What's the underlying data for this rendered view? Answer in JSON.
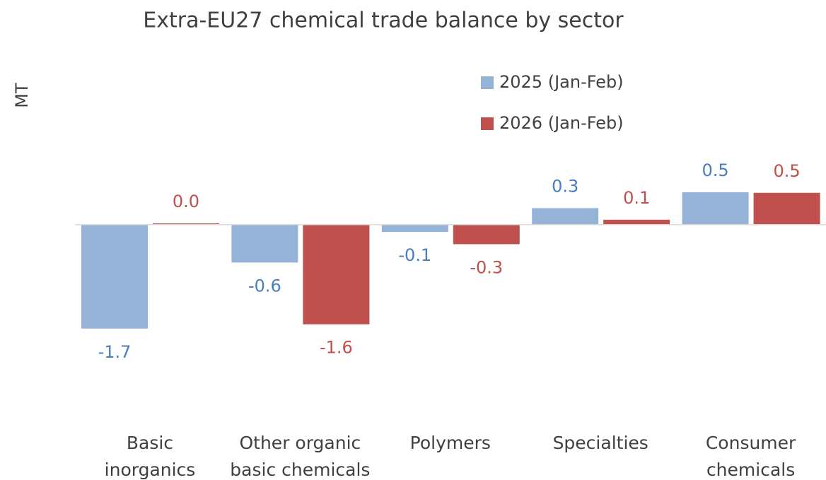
{
  "chart_data": {
    "type": "bar",
    "title": "Extra-EU27 chemical trade balance by sector",
    "y_label": "MT",
    "categories": [
      "Basic\ninorganics",
      "Other organic\nbasic chemicals",
      "Polymers",
      "Specialties",
      "Consumer\nchemicals"
    ],
    "series": [
      {
        "name": "2025 (Jan-Feb)",
        "color": "#95b3d7",
        "label_color": "#4a7ebb",
        "values": [
          -1.7,
          -0.62,
          -0.12,
          0.27,
          0.53
        ],
        "value_labels": [
          "-1.7",
          "-0.6",
          "-0.1",
          "0.3",
          "0.5"
        ]
      },
      {
        "name": "2026 (Jan-Feb)",
        "color": "#c0504d",
        "label_color": "#c0504d",
        "values": [
          0.02,
          -1.63,
          -0.32,
          0.08,
          0.52
        ],
        "value_labels": [
          "0.0",
          "-1.6",
          "-0.3",
          "0.1",
          "0.5"
        ]
      }
    ],
    "ylim": [
      -2.5,
      1.5
    ],
    "legend": "top-right"
  }
}
